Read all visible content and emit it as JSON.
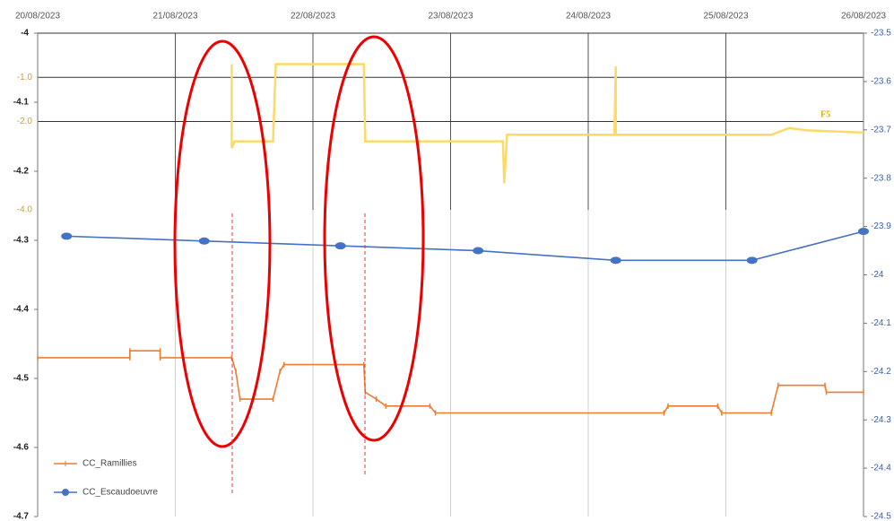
{
  "chart_data": {
    "type": "line",
    "annotation": "F5",
    "xlim": [
      0,
      6
    ],
    "xticks": [
      {
        "value": 0,
        "label": "20/08/2023"
      },
      {
        "value": 1,
        "label": "21/08/2023"
      },
      {
        "value": 2,
        "label": "22/08/2023"
      },
      {
        "value": 3,
        "label": "23/08/2023"
      },
      {
        "value": 4,
        "label": "24/08/2023"
      },
      {
        "value": 5,
        "label": "25/08/2023"
      },
      {
        "value": 6,
        "label": "26/08/2023"
      }
    ],
    "ylim": [
      -4.7,
      -4.0
    ],
    "yticks": [
      -4,
      -4.1,
      -4.2,
      -4.3,
      -4.4,
      -4.5,
      -4.6,
      -4.7
    ],
    "y2lim": [
      -24.5,
      -23.5
    ],
    "y2ticks": [
      -23.5,
      -23.6,
      -23.7,
      -23.8,
      -23.9,
      -24,
      -24.1,
      -24.2,
      -24.3,
      -24.4,
      -24.5
    ],
    "y3lim": [
      -4.0,
      0
    ],
    "y3ticks": [
      {
        "value": -1,
        "label": "-1.0"
      },
      {
        "value": -2,
        "label": "-2.0"
      },
      {
        "value": -4,
        "label": "-4.0"
      }
    ],
    "series": [
      {
        "name": "CC_Ramillies",
        "color": "#ed7d31",
        "axis": "y",
        "x": [
          0,
          0.67,
          0.67,
          0.89,
          0.89,
          1.41,
          1.44,
          1.47,
          1.71,
          1.76,
          1.79,
          2.37,
          2.38,
          2.46,
          2.53,
          2.85,
          2.89,
          4.55,
          4.58,
          4.94,
          4.97,
          5.33,
          5.38,
          5.72,
          5.73,
          6
        ],
        "values": [
          -4.47,
          -4.47,
          -4.46,
          -4.46,
          -4.47,
          -4.47,
          -4.49,
          -4.53,
          -4.53,
          -4.49,
          -4.48,
          -4.48,
          -4.52,
          -4.53,
          -4.54,
          -4.54,
          -4.55,
          -4.55,
          -4.54,
          -4.54,
          -4.55,
          -4.55,
          -4.51,
          -4.51,
          -4.52,
          -4.52
        ]
      },
      {
        "name": "CC_Escaudoeuvre",
        "color": "#4472c4",
        "axis": "y2",
        "x": [
          0.21,
          1.21,
          2.2,
          3.2,
          4.2,
          5.19,
          6
        ],
        "values": [
          -23.92,
          -23.93,
          -23.94,
          -23.95,
          -23.97,
          -23.97,
          -23.91
        ]
      },
      {
        "color": "#ffd966",
        "axis": "y3",
        "x": [
          1.41,
          1.41,
          1.43,
          1.71,
          1.73,
          2.37,
          2.38,
          3.38,
          3.39,
          3.41,
          4.19,
          4.2,
          4.2,
          5.33,
          5.46,
          5.59,
          6
        ],
        "values": [
          -0.7,
          -2.6,
          -2.45,
          -2.45,
          -0.7,
          -0.7,
          -2.45,
          -2.45,
          -3.4,
          -2.3,
          -2.3,
          -0.75,
          -2.3,
          -2.3,
          -2.15,
          -2.2,
          -2.25
        ]
      }
    ]
  }
}
